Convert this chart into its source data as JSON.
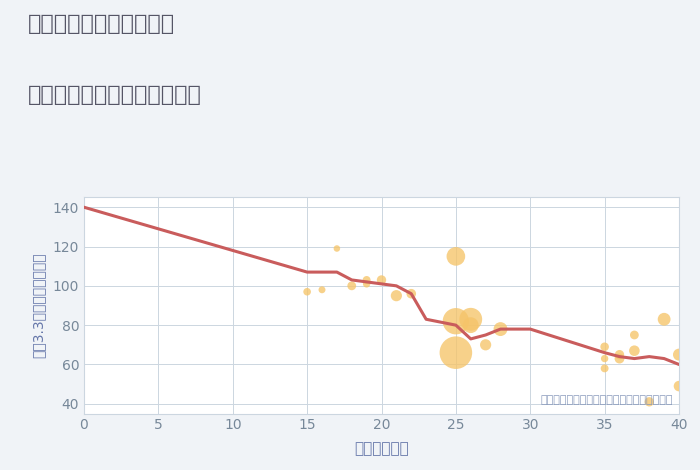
{
  "title_line1": "兵庫県西宮市小松西町の",
  "title_line2": "築年数別中古マンション価格",
  "xlabel": "築年数（年）",
  "ylabel": "坪（3.3㎡）単価（万円）",
  "annotation": "円の大きさは、取引のあった物件面積を示す",
  "fig_bg_color": "#f0f3f7",
  "plot_bg_color": "#ffffff",
  "xlim": [
    0,
    40
  ],
  "ylim": [
    35,
    145
  ],
  "xticks": [
    0,
    5,
    10,
    15,
    20,
    25,
    30,
    35,
    40
  ],
  "yticks": [
    40,
    60,
    80,
    100,
    120,
    140
  ],
  "line_x": [
    0,
    15,
    17,
    18,
    19,
    20,
    21,
    22,
    23,
    25,
    26,
    27,
    28,
    30,
    35,
    36,
    37,
    38,
    39,
    40
  ],
  "line_y": [
    140,
    107,
    107,
    103,
    102,
    101,
    100,
    96,
    83,
    80,
    73,
    75,
    78,
    78,
    66,
    64,
    63,
    64,
    63,
    60
  ],
  "line_color": "#c95c5c",
  "line_width": 2.2,
  "scatter_x": [
    15,
    16,
    17,
    18,
    19,
    19,
    20,
    21,
    22,
    25,
    25,
    25,
    26,
    26,
    27,
    28,
    35,
    35,
    35,
    36,
    36,
    37,
    37,
    38,
    39,
    40,
    40
  ],
  "scatter_y": [
    97,
    98,
    119,
    100,
    101,
    103,
    103,
    95,
    96,
    115,
    82,
    66,
    83,
    80,
    70,
    78,
    69,
    63,
    58,
    65,
    63,
    75,
    67,
    41,
    83,
    65,
    49
  ],
  "scatter_size": [
    30,
    25,
    22,
    40,
    28,
    32,
    45,
    65,
    48,
    180,
    360,
    550,
    270,
    130,
    65,
    100,
    38,
    28,
    32,
    45,
    50,
    40,
    58,
    45,
    85,
    75,
    58
  ],
  "scatter_color": "#f5c469",
  "scatter_alpha": 0.78,
  "title_color": "#555566",
  "axis_label_color": "#6677aa",
  "tick_color": "#778899",
  "annotation_color": "#8899bb",
  "grid_color": "#ccd6e0",
  "title_fontsize": 16,
  "axis_label_fontsize": 11,
  "tick_fontsize": 10,
  "annotation_fontsize": 8
}
